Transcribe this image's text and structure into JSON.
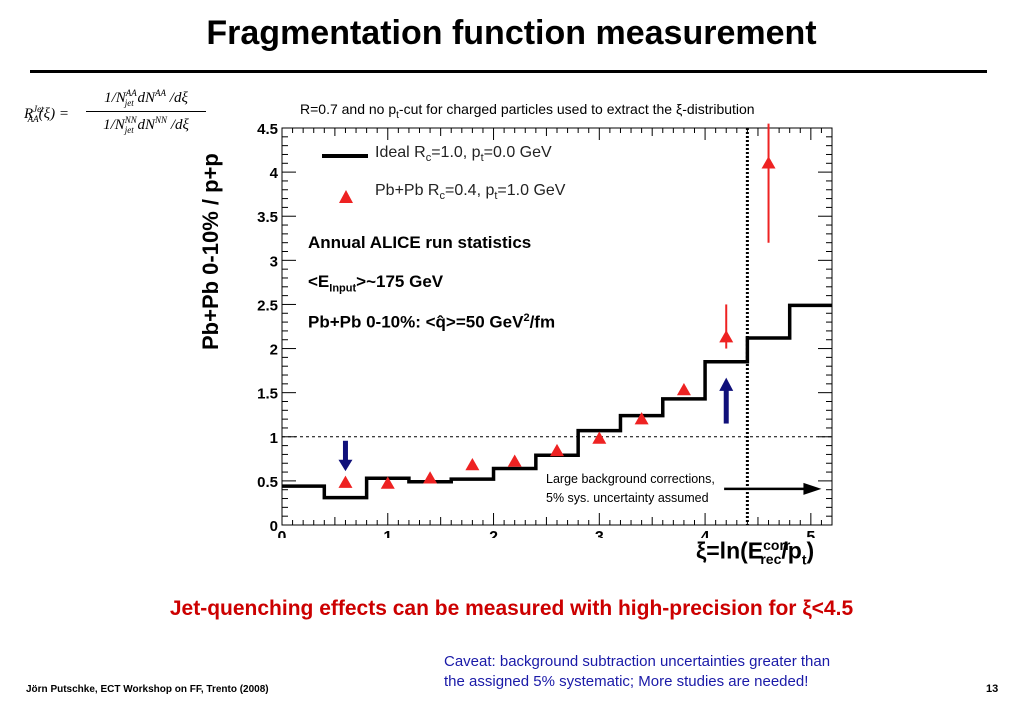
{
  "slide": {
    "title": "Fragmentation function measurement",
    "caption_pre": "R=0.7 and no p",
    "caption_sub": "t",
    "caption_post": "-cut for charged particles used to extract the ξ-distribution",
    "highlight": "Jet-quenching effects can be measured with high-precision for ξ<4.5",
    "caveat_line1": "Caveat: background subtraction uncertainties greater than",
    "caveat_line2": "the assigned 5% systematic;  More studies are needed!",
    "footer": "Jörn Putschke, ECT Workshop on FF, Trento (2008)",
    "page_number": "13"
  },
  "formula": {
    "lhs_R": "R",
    "lhs_sup": "Jet",
    "lhs_sub": "AA",
    "lhs_arg": "(ξ) =",
    "num_text": "1/N",
    "num_sup": "AA",
    "num_sub": "jet",
    "num_rest": " dN",
    "num_rest_sup": "AA",
    "num_tail": " /dξ",
    "den_text": "1/N",
    "den_sup": "NN",
    "den_sub": "jet",
    "den_rest": " dN",
    "den_rest_sup": "NN",
    "den_tail": " /dξ"
  },
  "legend": {
    "ideal_pre": "Ideal R",
    "ideal_sub1": "c",
    "ideal_mid": "=1.0, p",
    "ideal_sub2": "t",
    "ideal_post": "=0.0 GeV",
    "pbpb_pre": "Pb+Pb R",
    "pbpb_sub1": "c",
    "pbpb_mid": "=0.4, p",
    "pbpb_sub2": "t",
    "pbpb_post": "=1.0 GeV"
  },
  "stats": {
    "line1": "Annual ALICE run statistics",
    "line2_pre": "<E",
    "line2_sub": "Input",
    "line2_post": ">~175 GeV",
    "line3_pre": "Pb+Pb 0-10%: <q̂>=50 GeV",
    "line3_sup": "2",
    "line3_post": "/fm"
  },
  "annotation": {
    "line1": "Large background corrections,",
    "line2": "5% sys. uncertainty assumed"
  },
  "axis": {
    "ylabel": "Pb+Pb 0-10% / p+p",
    "xlabel_pre": "ξ=ln(E",
    "xlabel_sup": "corr",
    "xlabel_sub": "rec",
    "xlabel_mid": "/p",
    "xlabel_sub2": "t",
    "xlabel_post": ")"
  },
  "colors": {
    "line": "#000000",
    "markers": "#ee2222",
    "arrow_blue": "#10107a"
  },
  "chart_data": {
    "type": "line",
    "xlim": [
      0,
      5.2
    ],
    "ylim": [
      0,
      4.5
    ],
    "xticks": [
      "0",
      "1",
      "2",
      "3",
      "4",
      "5"
    ],
    "yticks": [
      "0",
      "0.5",
      "1",
      "1.5",
      "2",
      "2.5",
      "3",
      "3.5",
      "4",
      "4.5"
    ],
    "reference_y": 1.0,
    "cut_x": 4.4,
    "series": [
      {
        "name": "Ideal R_c=1.0, p_t=0.0 GeV",
        "style": "step",
        "bin_edges": [
          0,
          0.4,
          0.8,
          1.2,
          1.6,
          2.0,
          2.4,
          2.8,
          3.2,
          3.6,
          4.0,
          4.4,
          4.8,
          5.2
        ],
        "values": [
          0.44,
          0.31,
          0.53,
          0.49,
          0.52,
          0.64,
          0.79,
          1.07,
          1.24,
          1.43,
          1.85,
          2.12,
          2.49
        ]
      },
      {
        "name": "Pb+Pb R_c=0.4, p_t=1.0 GeV",
        "style": "markers",
        "x": [
          0.6,
          1.0,
          1.4,
          1.8,
          2.2,
          2.6,
          3.0,
          3.4,
          3.8,
          4.2,
          4.6
        ],
        "y": [
          0.48,
          0.47,
          0.53,
          0.68,
          0.72,
          0.84,
          0.98,
          1.2,
          1.53,
          2.13,
          4.1
        ],
        "yerr_low": [
          0,
          0,
          0,
          0,
          0,
          0,
          0,
          0,
          0,
          0.13,
          0.9
        ],
        "yerr_high": [
          0,
          0,
          0,
          0,
          0,
          0,
          0,
          0,
          0,
          0.37,
          0.45
        ]
      }
    ]
  }
}
